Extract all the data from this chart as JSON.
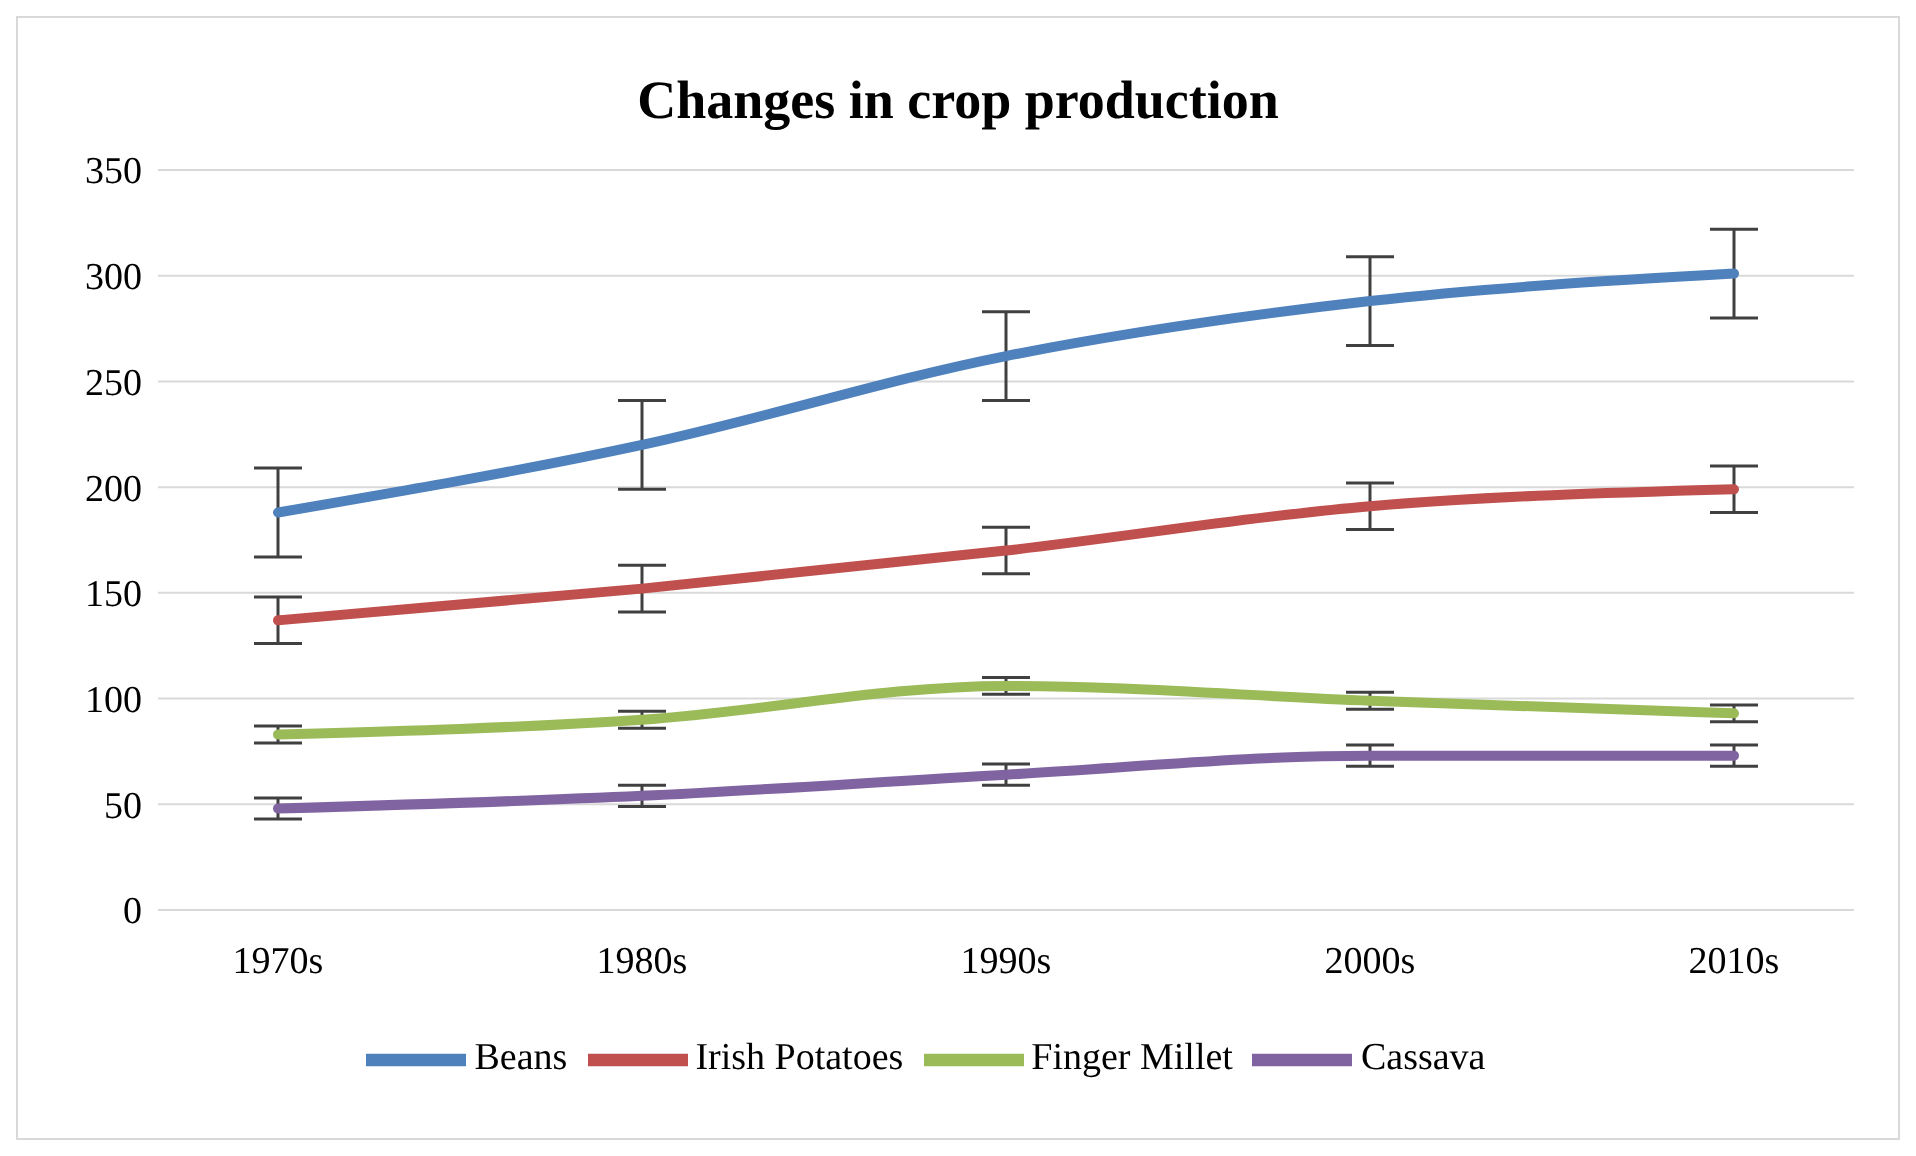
{
  "chart_data": {
    "type": "line",
    "title": "Changes in crop production",
    "categories": [
      "1970s",
      "1980s",
      "1990s",
      "2000s",
      "2010s"
    ],
    "series": [
      {
        "name": "Beans",
        "color": "#4f81bd",
        "values": [
          188,
          220,
          262,
          288,
          301
        ],
        "errors": [
          21,
          21,
          21,
          21,
          21
        ]
      },
      {
        "name": "Irish Potatoes",
        "color": "#c0504d",
        "values": [
          137,
          152,
          170,
          191,
          199
        ],
        "errors": [
          11,
          11,
          11,
          11,
          11
        ]
      },
      {
        "name": "Finger Millet",
        "color": "#9bbb59",
        "values": [
          83,
          90,
          106,
          99,
          93
        ],
        "errors": [
          4,
          4,
          4,
          4,
          4
        ]
      },
      {
        "name": "Cassava",
        "color": "#8064a2",
        "values": [
          48,
          54,
          64,
          73,
          73
        ],
        "errors": [
          5,
          5,
          5,
          5,
          5
        ]
      }
    ],
    "ylim": [
      0,
      350
    ],
    "yticks": [
      0,
      50,
      100,
      150,
      200,
      250,
      300,
      350
    ],
    "grid": "y",
    "legend": "bottom",
    "marker": "none",
    "line_style": "solid"
  }
}
